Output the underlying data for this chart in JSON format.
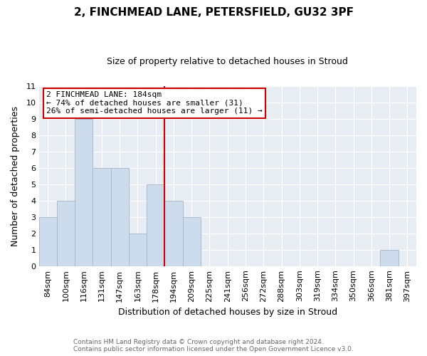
{
  "title": "2, FINCHMEAD LANE, PETERSFIELD, GU32 3PF",
  "subtitle": "Size of property relative to detached houses in Stroud",
  "xlabel": "Distribution of detached houses by size in Stroud",
  "ylabel": "Number of detached properties",
  "bin_labels": [
    "84sqm",
    "100sqm",
    "116sqm",
    "131sqm",
    "147sqm",
    "163sqm",
    "178sqm",
    "194sqm",
    "209sqm",
    "225sqm",
    "241sqm",
    "256sqm",
    "272sqm",
    "288sqm",
    "303sqm",
    "319sqm",
    "334sqm",
    "350sqm",
    "366sqm",
    "381sqm",
    "397sqm"
  ],
  "bar_heights": [
    3,
    4,
    9,
    6,
    6,
    2,
    5,
    4,
    3,
    0,
    0,
    0,
    0,
    0,
    0,
    0,
    0,
    0,
    0,
    1,
    0
  ],
  "bar_color": "#ccdcec",
  "bar_edge_color": "#aabccc",
  "subject_line_color": "#cc0000",
  "ylim": [
    0,
    11
  ],
  "yticks": [
    0,
    1,
    2,
    3,
    4,
    5,
    6,
    7,
    8,
    9,
    10,
    11
  ],
  "annotation_title": "2 FINCHMEAD LANE: 184sqm",
  "annotation_line1": "← 74% of detached houses are smaller (31)",
  "annotation_line2": "26% of semi-detached houses are larger (11) →",
  "annotation_box_facecolor": "#ffffff",
  "annotation_box_edgecolor": "#cc0000",
  "footer_line1": "Contains HM Land Registry data © Crown copyright and database right 2024.",
  "footer_line2": "Contains public sector information licensed under the Open Government Licence v3.0.",
  "background_color": "#ffffff",
  "plot_background_color": "#e8edf3",
  "grid_color": "#ffffff",
  "title_fontsize": 11,
  "subtitle_fontsize": 9,
  "ylabel_fontsize": 9,
  "xlabel_fontsize": 9,
  "tick_fontsize": 8,
  "annotation_fontsize": 8,
  "footer_fontsize": 6.5
}
